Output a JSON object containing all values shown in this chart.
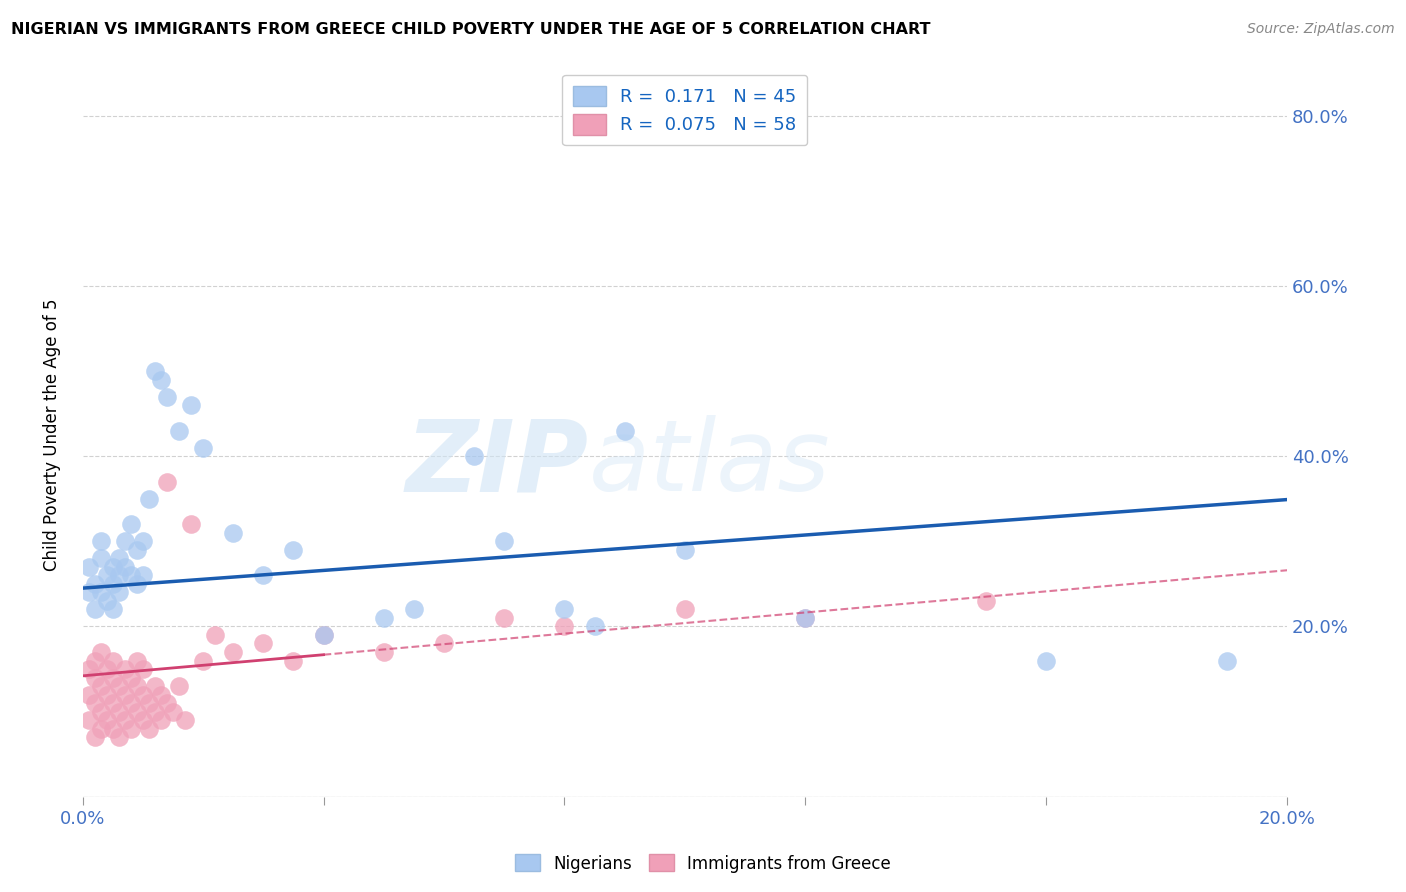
{
  "title": "NIGERIAN VS IMMIGRANTS FROM GREECE CHILD POVERTY UNDER THE AGE OF 5 CORRELATION CHART",
  "source": "Source: ZipAtlas.com",
  "ylabel": "Child Poverty Under the Age of 5",
  "legend_bottom": [
    "Nigerians",
    "Immigrants from Greece"
  ],
  "series1_R": 0.171,
  "series1_N": 45,
  "series2_R": 0.075,
  "series2_N": 58,
  "color_blue": "#A8C8F0",
  "color_pink": "#F0A0B8",
  "color_blue_line": "#1A5CB0",
  "color_pink_line": "#D04070",
  "color_pink_dash": "#D04070",
  "xlim": [
    0.0,
    0.2
  ],
  "ylim": [
    0.0,
    0.85
  ],
  "ytick_labels_right": [
    "",
    "20.0%",
    "40.0%",
    "60.0%",
    "80.0%"
  ],
  "nigerian_x": [
    0.001,
    0.001,
    0.002,
    0.002,
    0.003,
    0.003,
    0.003,
    0.004,
    0.004,
    0.005,
    0.005,
    0.005,
    0.006,
    0.006,
    0.006,
    0.007,
    0.007,
    0.008,
    0.008,
    0.009,
    0.009,
    0.01,
    0.01,
    0.011,
    0.012,
    0.013,
    0.014,
    0.016,
    0.018,
    0.02,
    0.025,
    0.03,
    0.035,
    0.04,
    0.05,
    0.055,
    0.065,
    0.07,
    0.08,
    0.085,
    0.09,
    0.1,
    0.12,
    0.16,
    0.19
  ],
  "nigerian_y": [
    0.24,
    0.27,
    0.22,
    0.25,
    0.24,
    0.28,
    0.3,
    0.23,
    0.26,
    0.25,
    0.27,
    0.22,
    0.26,
    0.24,
    0.28,
    0.3,
    0.27,
    0.32,
    0.26,
    0.29,
    0.25,
    0.3,
    0.26,
    0.35,
    0.5,
    0.49,
    0.47,
    0.43,
    0.46,
    0.41,
    0.31,
    0.26,
    0.29,
    0.19,
    0.21,
    0.22,
    0.4,
    0.3,
    0.22,
    0.2,
    0.43,
    0.29,
    0.21,
    0.16,
    0.16
  ],
  "greece_x": [
    0.001,
    0.001,
    0.001,
    0.002,
    0.002,
    0.002,
    0.002,
    0.003,
    0.003,
    0.003,
    0.003,
    0.004,
    0.004,
    0.004,
    0.005,
    0.005,
    0.005,
    0.005,
    0.006,
    0.006,
    0.006,
    0.007,
    0.007,
    0.007,
    0.008,
    0.008,
    0.008,
    0.009,
    0.009,
    0.009,
    0.01,
    0.01,
    0.01,
    0.011,
    0.011,
    0.012,
    0.012,
    0.013,
    0.013,
    0.014,
    0.014,
    0.015,
    0.016,
    0.017,
    0.018,
    0.02,
    0.022,
    0.025,
    0.03,
    0.035,
    0.04,
    0.05,
    0.06,
    0.07,
    0.08,
    0.1,
    0.12,
    0.15
  ],
  "greece_y": [
    0.12,
    0.15,
    0.09,
    0.11,
    0.07,
    0.14,
    0.16,
    0.1,
    0.13,
    0.08,
    0.17,
    0.12,
    0.09,
    0.15,
    0.11,
    0.08,
    0.14,
    0.16,
    0.1,
    0.13,
    0.07,
    0.15,
    0.09,
    0.12,
    0.11,
    0.08,
    0.14,
    0.1,
    0.13,
    0.16,
    0.09,
    0.12,
    0.15,
    0.08,
    0.11,
    0.1,
    0.13,
    0.09,
    0.12,
    0.11,
    0.37,
    0.1,
    0.13,
    0.09,
    0.32,
    0.16,
    0.19,
    0.17,
    0.18,
    0.16,
    0.19,
    0.17,
    0.18,
    0.21,
    0.2,
    0.22,
    0.21,
    0.23
  ]
}
